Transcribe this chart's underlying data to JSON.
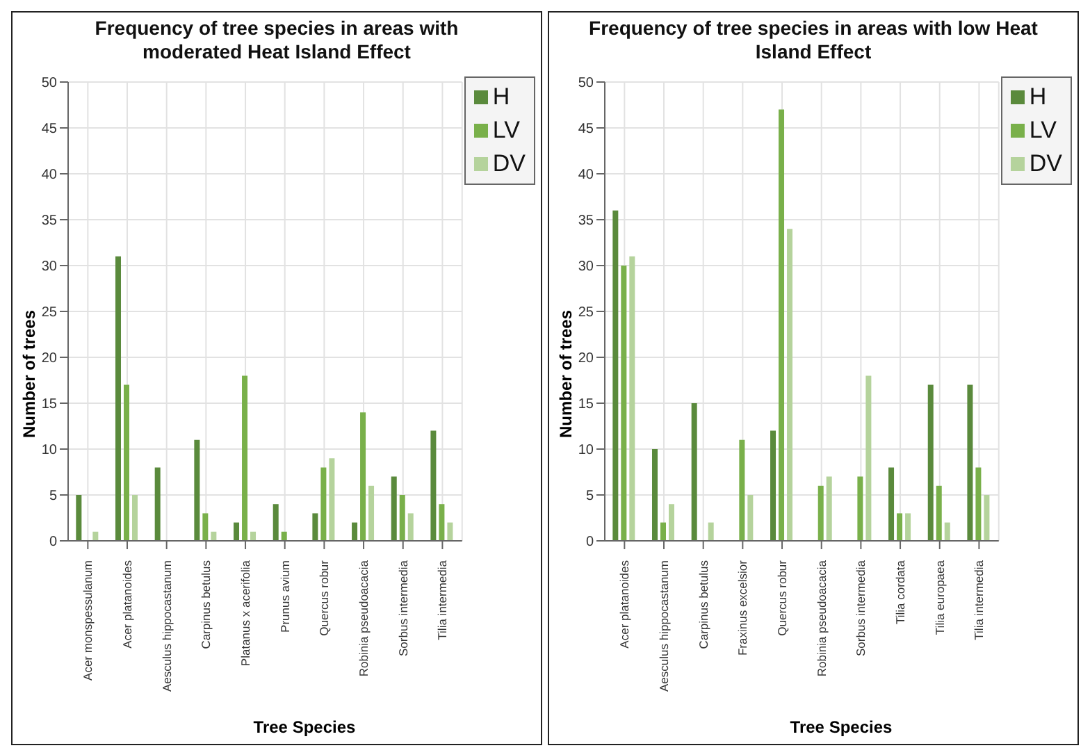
{
  "chart_data": [
    {
      "type": "bar",
      "title": "Frequency of tree species in areas with moderated Heat Island Effect",
      "xlabel": "Tree Species",
      "ylabel": "Number of trees",
      "categories": [
        "Acer monspessulanum",
        "Acer platanoides",
        "Aesculus hippocastanum",
        "Carpinus betulus",
        "Platanus x acerifolia",
        "Prunus avium",
        "Quercus robur",
        "Robinia pseudoacacia",
        "Sorbus intermedia",
        "Tilia intermedia"
      ],
      "series": [
        {
          "name": "H",
          "color": "#5a8a3c",
          "values": [
            5,
            31,
            8,
            11,
            2,
            4,
            3,
            2,
            7,
            12
          ]
        },
        {
          "name": "LV",
          "color": "#79b04a",
          "values": [
            0,
            17,
            0,
            3,
            18,
            1,
            8,
            14,
            5,
            4
          ]
        },
        {
          "name": "DV",
          "color": "#b5d39c",
          "values": [
            1,
            5,
            0,
            1,
            1,
            0,
            9,
            6,
            3,
            2
          ]
        }
      ],
      "ylim": [
        0,
        50
      ],
      "yticks": [
        0,
        5,
        10,
        15,
        20,
        25,
        30,
        35,
        40,
        45,
        50
      ],
      "grid": true,
      "legend": "top right"
    },
    {
      "type": "bar",
      "title": "Frequency of tree species in areas with low Heat Island Effect",
      "xlabel": "Tree Species",
      "ylabel": "Number of trees",
      "categories": [
        "Acer platanoides",
        "Aesculus hippocastanum",
        "Carpinus betulus",
        "Fraxinus excelsior",
        "Quercus robur",
        "Robinia pseudoacacia",
        "Sorbus intermedia",
        "Tilia cordata",
        "Tilia europaea",
        "Tilia intermedia"
      ],
      "series": [
        {
          "name": "H",
          "color": "#5a8a3c",
          "values": [
            36,
            10,
            15,
            0,
            12,
            0,
            0,
            8,
            17,
            17
          ]
        },
        {
          "name": "LV",
          "color": "#79b04a",
          "values": [
            30,
            2,
            0,
            11,
            47,
            6,
            7,
            3,
            6,
            8
          ]
        },
        {
          "name": "DV",
          "color": "#b5d39c",
          "values": [
            31,
            4,
            2,
            5,
            34,
            7,
            18,
            3,
            2,
            5
          ]
        }
      ],
      "ylim": [
        0,
        50
      ],
      "yticks": [
        0,
        5,
        10,
        15,
        20,
        25,
        30,
        35,
        40,
        45,
        50
      ],
      "grid": true,
      "legend": "top right"
    }
  ]
}
